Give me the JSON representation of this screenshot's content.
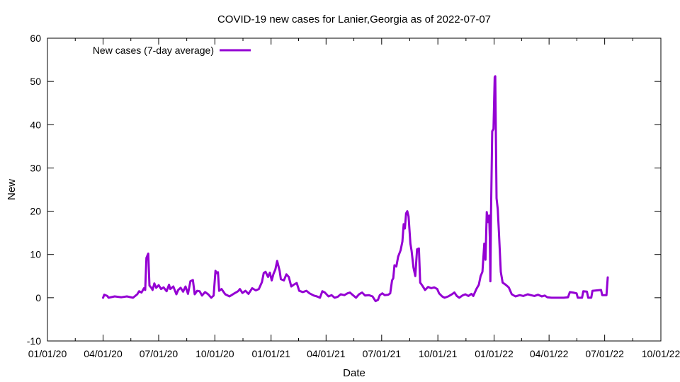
{
  "chart_data": {
    "type": "line",
    "title": "COVID-19 new cases for Lanier,Georgia as of 2022-07-07",
    "xlabel": "Date",
    "ylabel": "New",
    "xlim": [
      "2020-01-01",
      "2022-10-01"
    ],
    "ylim": [
      -10,
      60
    ],
    "x_ticks": [
      "01/01/20",
      "04/01/20",
      "07/01/20",
      "10/01/20",
      "01/01/21",
      "04/01/21",
      "07/01/21",
      "10/01/21",
      "01/01/22",
      "04/01/22",
      "07/01/22",
      "10/01/22"
    ],
    "x_tick_dates": [
      "2020-01-01",
      "2020-04-01",
      "2020-07-01",
      "2020-10-01",
      "2021-01-01",
      "2021-04-01",
      "2021-07-01",
      "2021-10-01",
      "2022-01-01",
      "2022-04-01",
      "2022-07-01",
      "2022-10-01"
    ],
    "y_ticks": [
      -10,
      0,
      10,
      20,
      30,
      40,
      50,
      60
    ],
    "grid": false,
    "legend_position": "top-left",
    "series": [
      {
        "name": "New cases (7-day average)",
        "color": "#9400d3",
        "points": [
          [
            "2020-04-01",
            0.0
          ],
          [
            "2020-04-03",
            0.7
          ],
          [
            "2020-04-08",
            0.4
          ],
          [
            "2020-04-10",
            0.0
          ],
          [
            "2020-04-20",
            0.3
          ],
          [
            "2020-05-01",
            0.1
          ],
          [
            "2020-05-10",
            0.3
          ],
          [
            "2020-05-20",
            0.0
          ],
          [
            "2020-05-27",
            0.8
          ],
          [
            "2020-05-30",
            1.5
          ],
          [
            "2020-06-03",
            1.2
          ],
          [
            "2020-06-07",
            2.2
          ],
          [
            "2020-06-09",
            1.8
          ],
          [
            "2020-06-11",
            9.2
          ],
          [
            "2020-06-14",
            10.2
          ],
          [
            "2020-06-16",
            2.8
          ],
          [
            "2020-06-19",
            2.3
          ],
          [
            "2020-06-21",
            1.8
          ],
          [
            "2020-06-24",
            3.3
          ],
          [
            "2020-06-27",
            2.3
          ],
          [
            "2020-07-01",
            2.9
          ],
          [
            "2020-07-05",
            2.0
          ],
          [
            "2020-07-09",
            2.4
          ],
          [
            "2020-07-14",
            1.5
          ],
          [
            "2020-07-18",
            3.0
          ],
          [
            "2020-07-20",
            2.0
          ],
          [
            "2020-07-25",
            2.6
          ],
          [
            "2020-07-30",
            0.8
          ],
          [
            "2020-08-02",
            1.8
          ],
          [
            "2020-08-06",
            2.3
          ],
          [
            "2020-08-10",
            1.4
          ],
          [
            "2020-08-14",
            2.6
          ],
          [
            "2020-08-18",
            0.9
          ],
          [
            "2020-08-22",
            3.8
          ],
          [
            "2020-08-26",
            4.1
          ],
          [
            "2020-08-29",
            0.8
          ],
          [
            "2020-09-02",
            1.6
          ],
          [
            "2020-09-06",
            1.5
          ],
          [
            "2020-09-10",
            0.5
          ],
          [
            "2020-09-15",
            1.3
          ],
          [
            "2020-09-20",
            0.8
          ],
          [
            "2020-09-25",
            0.0
          ],
          [
            "2020-09-29",
            0.5
          ],
          [
            "2020-10-02",
            6.2
          ],
          [
            "2020-10-04",
            5.7
          ],
          [
            "2020-10-06",
            5.9
          ],
          [
            "2020-10-08",
            1.6
          ],
          [
            "2020-10-12",
            2.0
          ],
          [
            "2020-10-18",
            0.8
          ],
          [
            "2020-10-25",
            0.3
          ],
          [
            "2020-11-02",
            1.0
          ],
          [
            "2020-11-08",
            1.5
          ],
          [
            "2020-11-11",
            2.0
          ],
          [
            "2020-11-15",
            1.1
          ],
          [
            "2020-11-20",
            1.6
          ],
          [
            "2020-11-25",
            0.9
          ],
          [
            "2020-12-01",
            2.2
          ],
          [
            "2020-12-07",
            1.7
          ],
          [
            "2020-12-12",
            2.0
          ],
          [
            "2020-12-17",
            3.6
          ],
          [
            "2020-12-20",
            5.7
          ],
          [
            "2020-12-23",
            6.0
          ],
          [
            "2020-12-27",
            4.8
          ],
          [
            "2020-12-30",
            5.8
          ],
          [
            "2021-01-02",
            4.0
          ],
          [
            "2021-01-05",
            5.5
          ],
          [
            "2021-01-08",
            6.5
          ],
          [
            "2021-01-11",
            8.5
          ],
          [
            "2021-01-15",
            6.2
          ],
          [
            "2021-01-17",
            4.3
          ],
          [
            "2021-01-22",
            4.0
          ],
          [
            "2021-01-26",
            5.4
          ],
          [
            "2021-01-30",
            4.8
          ],
          [
            "2021-02-03",
            2.6
          ],
          [
            "2021-02-07",
            3.0
          ],
          [
            "2021-02-12",
            3.4
          ],
          [
            "2021-02-16",
            1.6
          ],
          [
            "2021-02-22",
            1.3
          ],
          [
            "2021-02-28",
            1.6
          ],
          [
            "2021-03-05",
            1.0
          ],
          [
            "2021-03-12",
            0.5
          ],
          [
            "2021-03-17",
            0.3
          ],
          [
            "2021-03-22",
            0.0
          ],
          [
            "2021-03-26",
            1.5
          ],
          [
            "2021-03-30",
            1.2
          ],
          [
            "2021-04-05",
            0.3
          ],
          [
            "2021-04-10",
            0.6
          ],
          [
            "2021-04-15",
            0.0
          ],
          [
            "2021-04-20",
            0.2
          ],
          [
            "2021-04-25",
            0.8
          ],
          [
            "2021-05-01",
            0.6
          ],
          [
            "2021-05-06",
            1.0
          ],
          [
            "2021-05-10",
            1.2
          ],
          [
            "2021-05-15",
            0.6
          ],
          [
            "2021-05-20",
            0.0
          ],
          [
            "2021-05-25",
            0.8
          ],
          [
            "2021-05-30",
            1.2
          ],
          [
            "2021-06-04",
            0.5
          ],
          [
            "2021-06-10",
            0.6
          ],
          [
            "2021-06-16",
            0.3
          ],
          [
            "2021-06-21",
            -0.8
          ],
          [
            "2021-06-25",
            -0.5
          ],
          [
            "2021-06-28",
            0.6
          ],
          [
            "2021-07-02",
            1.0
          ],
          [
            "2021-07-06",
            0.6
          ],
          [
            "2021-07-12",
            0.7
          ],
          [
            "2021-07-15",
            1.0
          ],
          [
            "2021-07-18",
            4.0
          ],
          [
            "2021-07-20",
            4.5
          ],
          [
            "2021-07-22",
            7.5
          ],
          [
            "2021-07-25",
            7.2
          ],
          [
            "2021-07-28",
            9.5
          ],
          [
            "2021-08-01",
            11.0
          ],
          [
            "2021-08-04",
            13.0
          ],
          [
            "2021-08-06",
            17.0
          ],
          [
            "2021-08-08",
            16.0
          ],
          [
            "2021-08-10",
            19.5
          ],
          [
            "2021-08-12",
            20.0
          ],
          [
            "2021-08-14",
            18.8
          ],
          [
            "2021-08-17",
            12.5
          ],
          [
            "2021-08-19",
            10.8
          ],
          [
            "2021-08-22",
            7.0
          ],
          [
            "2021-08-25",
            5.0
          ],
          [
            "2021-08-28",
            11.2
          ],
          [
            "2021-08-31",
            11.4
          ],
          [
            "2021-09-02",
            3.5
          ],
          [
            "2021-09-06",
            2.7
          ],
          [
            "2021-09-10",
            1.8
          ],
          [
            "2021-09-15",
            2.5
          ],
          [
            "2021-09-20",
            2.2
          ],
          [
            "2021-09-25",
            2.4
          ],
          [
            "2021-09-30",
            2.0
          ],
          [
            "2021-10-03",
            1.0
          ],
          [
            "2021-10-08",
            0.3
          ],
          [
            "2021-10-12",
            0.0
          ],
          [
            "2021-10-18",
            0.3
          ],
          [
            "2021-10-24",
            0.8
          ],
          [
            "2021-10-28",
            1.2
          ],
          [
            "2021-11-01",
            0.4
          ],
          [
            "2021-11-05",
            0.0
          ],
          [
            "2021-11-10",
            0.5
          ],
          [
            "2021-11-15",
            0.8
          ],
          [
            "2021-11-20",
            0.4
          ],
          [
            "2021-11-25",
            0.9
          ],
          [
            "2021-11-28",
            0.4
          ],
          [
            "2021-12-03",
            2.0
          ],
          [
            "2021-12-07",
            3.0
          ],
          [
            "2021-12-10",
            5.0
          ],
          [
            "2021-12-13",
            6.0
          ],
          [
            "2021-12-16",
            12.5
          ],
          [
            "2021-12-18",
            8.8
          ],
          [
            "2021-12-20",
            19.8
          ],
          [
            "2021-12-22",
            17.5
          ],
          [
            "2021-12-24",
            19.0
          ],
          [
            "2021-12-25",
            14.0
          ],
          [
            "2021-12-26",
            3.8
          ],
          [
            "2021-12-27",
            19.5
          ],
          [
            "2021-12-29",
            38.5
          ],
          [
            "2021-12-31",
            39.0
          ],
          [
            "2022-01-02",
            51.0
          ],
          [
            "2022-01-03",
            51.2
          ],
          [
            "2022-01-05",
            23.0
          ],
          [
            "2022-01-07",
            20.5
          ],
          [
            "2022-01-09",
            15.0
          ],
          [
            "2022-01-12",
            6.0
          ],
          [
            "2022-01-15",
            3.5
          ],
          [
            "2022-01-20",
            3.0
          ],
          [
            "2022-01-25",
            2.4
          ],
          [
            "2022-01-30",
            0.8
          ],
          [
            "2022-02-05",
            0.3
          ],
          [
            "2022-02-12",
            0.6
          ],
          [
            "2022-02-18",
            0.4
          ],
          [
            "2022-02-25",
            0.8
          ],
          [
            "2022-03-02",
            0.6
          ],
          [
            "2022-03-08",
            0.4
          ],
          [
            "2022-03-14",
            0.7
          ],
          [
            "2022-03-20",
            0.3
          ],
          [
            "2022-03-25",
            0.5
          ],
          [
            "2022-03-29",
            0.1
          ],
          [
            "2022-04-05",
            0.0
          ],
          [
            "2022-04-15",
            0.0
          ],
          [
            "2022-04-25",
            0.0
          ],
          [
            "2022-05-02",
            0.1
          ],
          [
            "2022-05-05",
            1.3
          ],
          [
            "2022-05-10",
            1.2
          ],
          [
            "2022-05-16",
            1.0
          ],
          [
            "2022-05-18",
            0.0
          ],
          [
            "2022-05-25",
            0.0
          ],
          [
            "2022-05-27",
            1.5
          ],
          [
            "2022-06-02",
            1.4
          ],
          [
            "2022-06-04",
            0.0
          ],
          [
            "2022-06-09",
            0.0
          ],
          [
            "2022-06-11",
            1.6
          ],
          [
            "2022-06-18",
            1.7
          ],
          [
            "2022-06-25",
            1.8
          ],
          [
            "2022-06-27",
            0.6
          ],
          [
            "2022-07-04",
            0.6
          ],
          [
            "2022-07-06",
            4.7
          ]
        ]
      }
    ]
  }
}
